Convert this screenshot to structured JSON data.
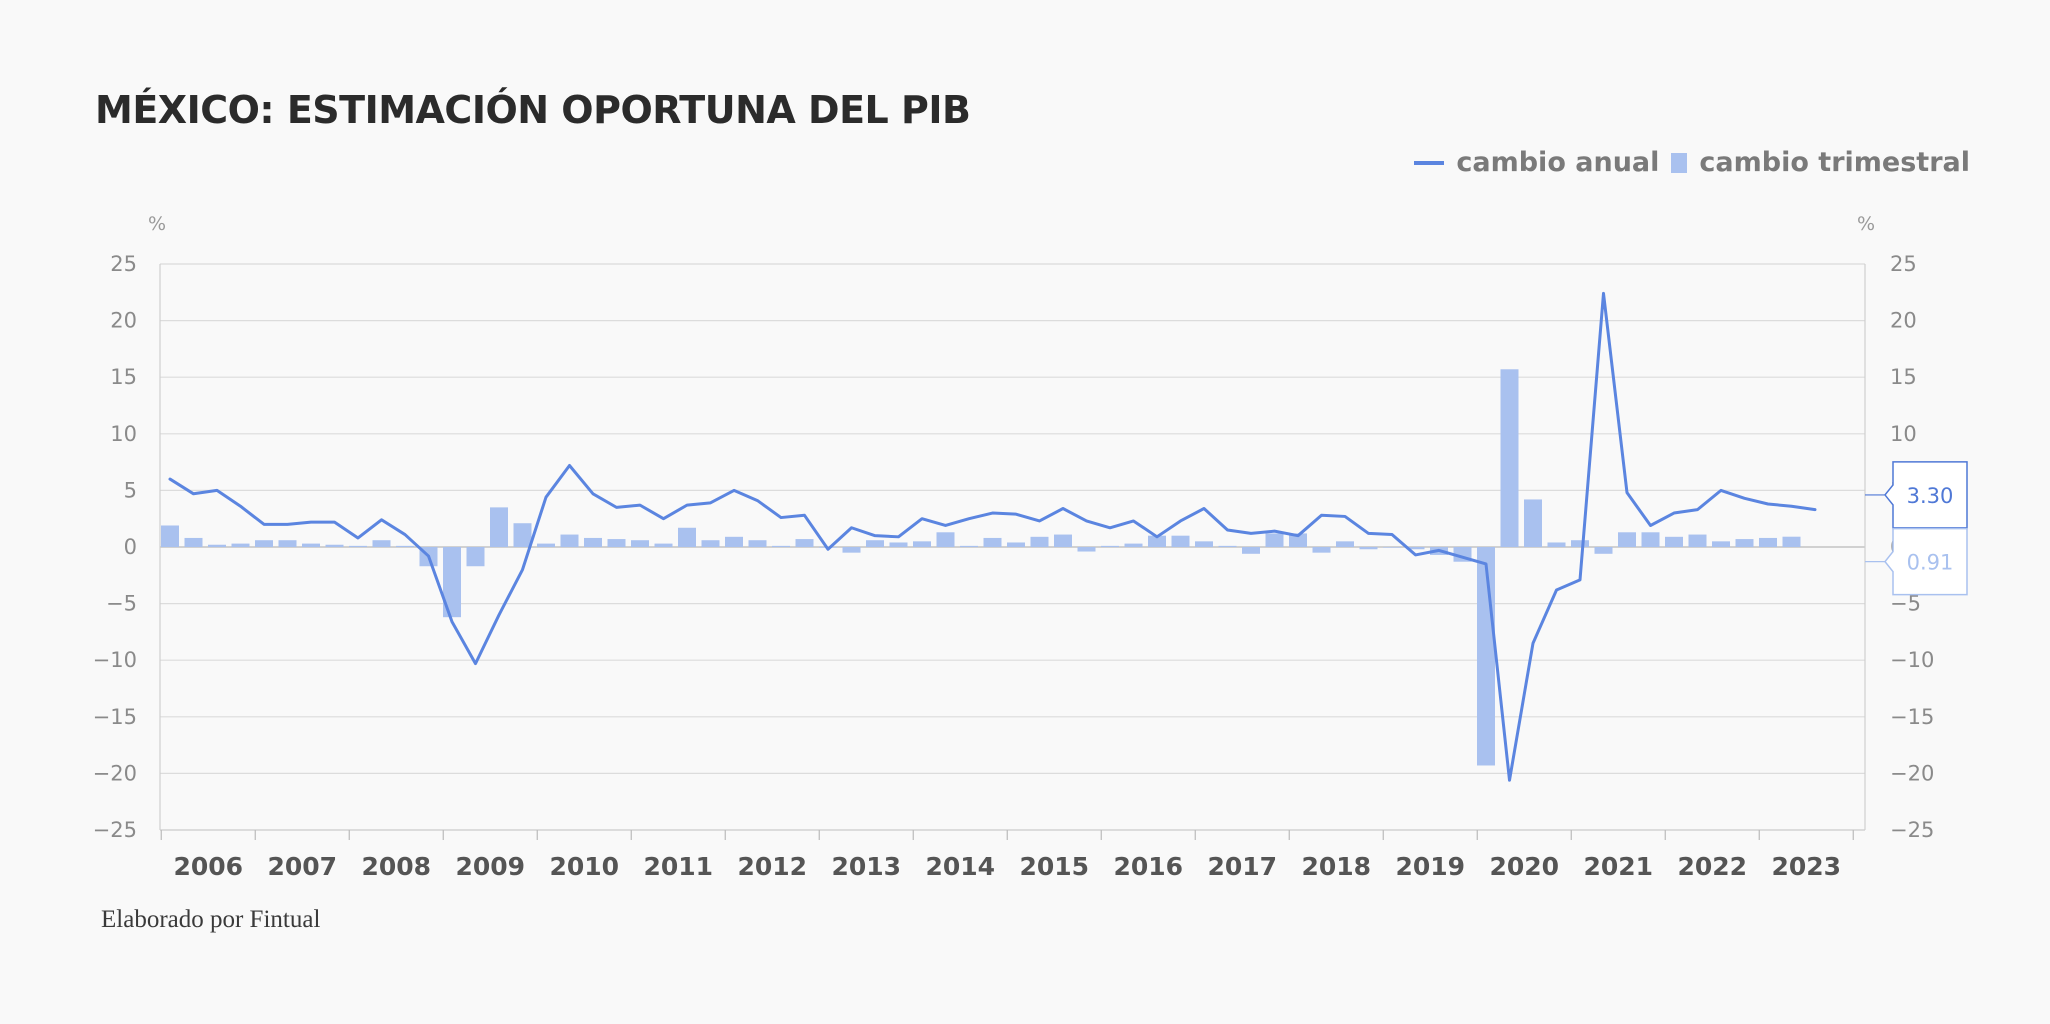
{
  "chart_data": {
    "type": "bar+line",
    "title": "MÉXICO: ESTIMACIÓN OPORTUNA DEL PIB",
    "source": "Elaborado por Fintual",
    "unit_left": "%",
    "unit_right": "%",
    "ylim": [
      -25,
      25
    ],
    "y_ticks": [
      25,
      20,
      15,
      10,
      5,
      0,
      -5,
      -10,
      -15,
      -20,
      -25
    ],
    "y_tick_labels": [
      "25",
      "20",
      "15",
      "10",
      "5",
      "0",
      "−5",
      "−10",
      "−15",
      "−20",
      "−25"
    ],
    "years": [
      "2006",
      "2007",
      "2008",
      "2009",
      "2010",
      "2011",
      "2012",
      "2013",
      "2014",
      "2015",
      "2016",
      "2017",
      "2018",
      "2019",
      "2020",
      "2021",
      "2022",
      "2023"
    ],
    "quarters_per_year": 4,
    "series": [
      {
        "name": "cambio anual",
        "kind": "line",
        "color": "#5b85e0",
        "values": [
          6.0,
          4.7,
          5.0,
          3.6,
          2.0,
          2.0,
          2.2,
          2.2,
          0.8,
          2.4,
          1.1,
          -0.8,
          -6.6,
          -10.3,
          -6.0,
          -2.0,
          4.4,
          7.2,
          4.7,
          3.5,
          3.7,
          2.5,
          3.7,
          3.9,
          5.0,
          4.1,
          2.6,
          2.8,
          -0.2,
          1.7,
          1.0,
          0.9,
          2.5,
          1.9,
          2.5,
          3.0,
          2.9,
          2.3,
          3.4,
          2.3,
          1.7,
          2.3,
          0.9,
          2.3,
          3.4,
          1.5,
          1.2,
          1.4,
          1.0,
          2.8,
          2.7,
          1.2,
          1.1,
          -0.7,
          -0.3,
          -0.9,
          -1.5,
          -20.6,
          -8.5,
          -3.8,
          -2.9,
          22.4,
          4.8,
          1.9,
          3.0,
          3.3,
          5.0,
          4.3,
          3.8,
          3.6,
          3.3
        ],
        "last_value_label": "3.30"
      },
      {
        "name": "cambio trimestral",
        "kind": "bar",
        "color": "#a9c1ef",
        "values": [
          1.9,
          0.8,
          0.2,
          0.3,
          0.6,
          0.6,
          0.3,
          0.2,
          0.1,
          0.6,
          0.1,
          -1.7,
          -6.2,
          -1.7,
          3.5,
          2.1,
          0.3,
          1.1,
          0.8,
          0.7,
          0.6,
          0.3,
          1.7,
          0.6,
          0.9,
          0.6,
          0.1,
          0.7,
          0.0,
          -0.5,
          0.6,
          0.4,
          0.5,
          1.3,
          0.1,
          0.8,
          0.4,
          0.9,
          1.1,
          -0.4,
          0.1,
          0.3,
          1.0,
          1.0,
          0.5,
          0.1,
          -0.6,
          1.2,
          1.2,
          -0.5,
          0.5,
          -0.2,
          0.0,
          -0.2,
          -0.7,
          -1.3,
          -19.3,
          15.7,
          4.2,
          0.4,
          0.6,
          -0.6,
          1.3,
          1.3,
          0.9,
          1.1,
          0.5,
          0.7,
          0.8,
          0.91
        ],
        "last_value_label": "0.91"
      }
    ],
    "legend": [
      "cambio anual",
      "cambio trimestral"
    ],
    "legend_position": "top-right",
    "grid": true
  }
}
